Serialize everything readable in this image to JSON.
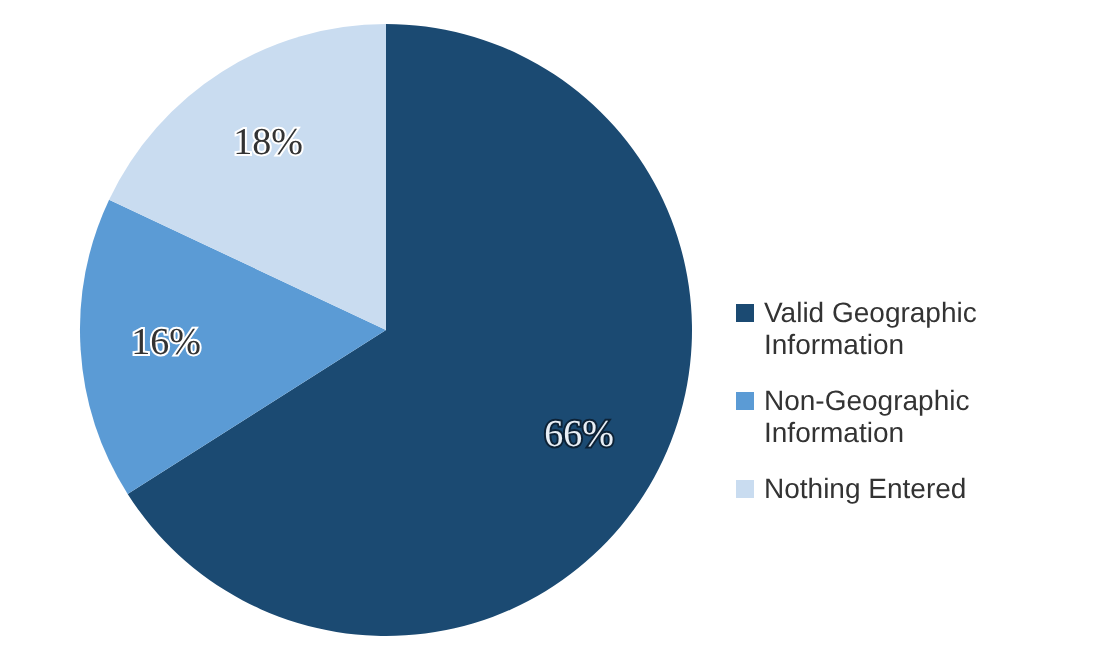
{
  "chart_data": {
    "type": "pie",
    "categories": [
      "Valid Geographic Information",
      "Non-Geographic Information",
      "Nothing Entered"
    ],
    "values": [
      66,
      16,
      18
    ],
    "colors": [
      "#1b4a72",
      "#5b9bd5",
      "#c9dcf0"
    ],
    "value_labels": [
      "66%",
      "16%",
      "18%"
    ],
    "legend": "right"
  }
}
